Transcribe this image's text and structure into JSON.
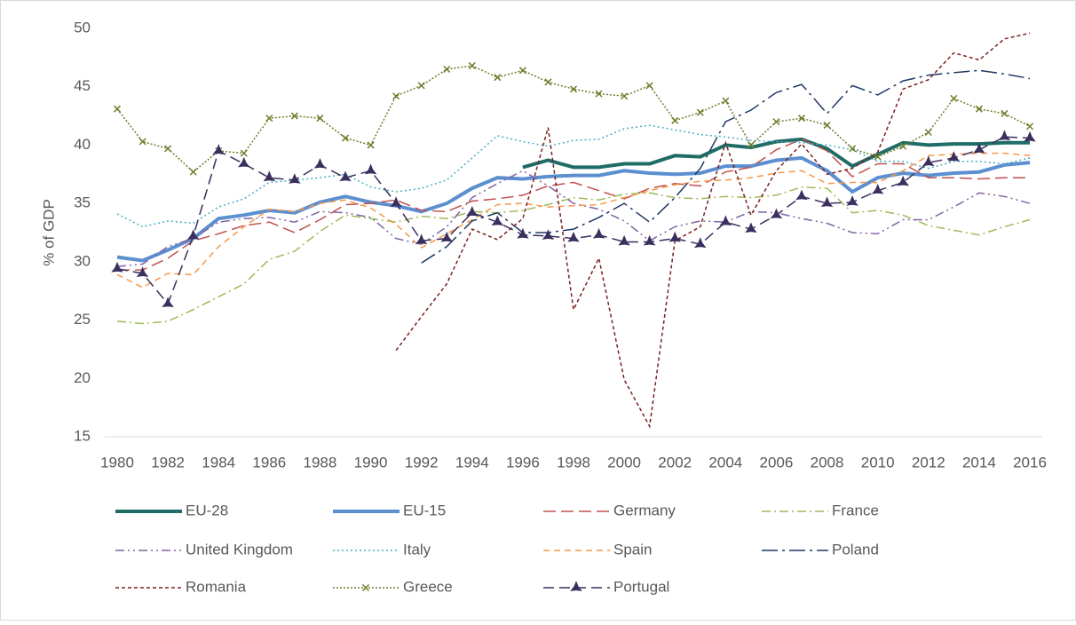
{
  "chart_data": {
    "type": "line",
    "y_label": "% of GDP",
    "x": [
      1980,
      1981,
      1982,
      1983,
      1984,
      1985,
      1986,
      1987,
      1988,
      1989,
      1990,
      1991,
      1992,
      1993,
      1994,
      1995,
      1996,
      1997,
      1998,
      1999,
      2000,
      2001,
      2002,
      2003,
      2004,
      2005,
      2006,
      2007,
      2008,
      2009,
      2010,
      2011,
      2012,
      2013,
      2014,
      2015,
      2016
    ],
    "xlim": [
      1980,
      2016
    ],
    "xticks": [
      1980,
      1982,
      1984,
      1986,
      1988,
      1990,
      1992,
      1994,
      1996,
      1998,
      2000,
      2002,
      2004,
      2006,
      2008,
      2010,
      2012,
      2014,
      2016
    ],
    "ylim": [
      15,
      50
    ],
    "yticks": [
      15,
      20,
      25,
      30,
      35,
      40,
      45,
      50
    ],
    "grid": false,
    "legend": "bottom",
    "series": [
      {
        "name": "EU-28",
        "color": "#1f6b66",
        "width": 4,
        "dash": "",
        "marker": "none",
        "values": [
          null,
          null,
          null,
          null,
          null,
          null,
          null,
          null,
          null,
          null,
          null,
          null,
          null,
          null,
          null,
          null,
          38.1,
          38.7,
          38.1,
          38.1,
          38.4,
          38.4,
          39.1,
          39.0,
          40.0,
          39.8,
          40.3,
          40.5,
          39.7,
          38.2,
          39.2,
          40.2,
          40.0,
          40.1,
          40.1,
          40.2,
          40.2
        ]
      },
      {
        "name": "EU-15",
        "color": "#5b8fd0",
        "width": 4,
        "dash": "",
        "marker": "none",
        "values": [
          30.4,
          30.1,
          31.0,
          32.0,
          33.7,
          34.0,
          34.4,
          34.2,
          35.1,
          35.6,
          35.1,
          34.8,
          34.3,
          35.0,
          36.3,
          37.2,
          37.1,
          37.3,
          37.4,
          37.4,
          37.8,
          37.6,
          37.5,
          37.6,
          38.2,
          38.2,
          38.7,
          38.9,
          37.8,
          36.0,
          37.2,
          37.6,
          37.4,
          37.6,
          37.7,
          38.3,
          38.5
        ]
      },
      {
        "name": "Germany",
        "color": "#c0504d",
        "width": 1.5,
        "dash": "14 6",
        "marker": "none",
        "values": [
          29.3,
          29.3,
          30.3,
          31.8,
          32.4,
          33.1,
          33.4,
          32.5,
          33.6,
          34.9,
          35.0,
          35.3,
          34.4,
          34.3,
          35.2,
          35.4,
          35.7,
          36.5,
          36.8,
          36.1,
          35.4,
          36.3,
          36.7,
          36.5,
          37.7,
          38.1,
          39.6,
          40.5,
          39.5,
          37.3,
          38.4,
          38.4,
          37.2,
          37.2,
          37.1,
          37.2,
          37.2
        ]
      },
      {
        "name": "France",
        "color": "#9bbb59",
        "width": 1.5,
        "dash": "10 4 2 4",
        "marker": "none",
        "values": [
          24.9,
          24.7,
          24.9,
          25.9,
          27.0,
          28.1,
          30.2,
          30.9,
          32.6,
          34.0,
          33.7,
          33.4,
          33.9,
          33.7,
          34.3,
          34.2,
          34.4,
          34.9,
          35.5,
          35.3,
          35.8,
          35.9,
          35.5,
          35.4,
          35.6,
          35.5,
          35.7,
          36.4,
          36.3,
          34.2,
          34.4,
          34.0,
          33.1,
          32.7,
          32.3,
          33.0,
          33.6
        ]
      },
      {
        "name": "United Kingdom",
        "color": "#8064a2",
        "width": 1.5,
        "dash": "10 4 2 4 2 4",
        "marker": "none",
        "values": [
          29.6,
          29.8,
          31.3,
          32.0,
          33.4,
          33.7,
          33.8,
          33.4,
          34.3,
          34.2,
          33.8,
          32.0,
          31.5,
          33.0,
          35.5,
          36.7,
          37.8,
          36.5,
          35.0,
          34.5,
          33.5,
          31.8,
          33.0,
          33.5,
          33.4,
          34.3,
          34.2,
          33.7,
          33.3,
          32.5,
          32.4,
          33.6,
          33.6,
          34.7,
          35.9,
          35.6,
          35.0
        ]
      },
      {
        "name": "Italy",
        "color": "#4bacc6",
        "width": 1.5,
        "dash": "2 3",
        "marker": "none",
        "values": [
          34.1,
          33.0,
          33.5,
          33.3,
          34.7,
          35.4,
          36.8,
          37.0,
          37.2,
          37.5,
          36.4,
          36.0,
          36.3,
          37.0,
          38.9,
          40.8,
          40.3,
          39.9,
          40.4,
          40.5,
          41.4,
          41.7,
          41.3,
          40.9,
          40.7,
          40.4,
          40.3,
          40.2,
          40.0,
          39.6,
          38.6,
          38.6,
          38.0,
          38.6,
          38.6,
          38.4,
          38.9
        ]
      },
      {
        "name": "Spain",
        "color": "#f79646",
        "width": 1.5,
        "dash": "7 5",
        "marker": "none",
        "values": [
          28.9,
          27.8,
          29.0,
          28.9,
          31.3,
          33.0,
          34.5,
          34.3,
          35.0,
          35.3,
          34.6,
          33.2,
          31.2,
          32.4,
          33.6,
          34.9,
          35.0,
          34.7,
          34.8,
          34.9,
          35.5,
          36.1,
          36.6,
          36.9,
          37.0,
          37.2,
          37.6,
          37.8,
          36.7,
          36.8,
          36.8,
          37.8,
          39.1,
          39.2,
          39.3,
          39.3,
          39.1
        ]
      },
      {
        "name": "Poland",
        "color": "#1f3864",
        "width": 1.5,
        "dash": "18 5 3 5",
        "marker": "none",
        "values": [
          null,
          null,
          null,
          null,
          null,
          null,
          null,
          null,
          null,
          null,
          null,
          null,
          29.9,
          31.3,
          33.5,
          34.2,
          32.5,
          32.5,
          32.8,
          33.8,
          35.0,
          33.4,
          35.5,
          38.0,
          42.0,
          43.0,
          44.5,
          45.2,
          42.7,
          45.1,
          44.3,
          45.5,
          46.0,
          46.2,
          46.4,
          46.1,
          45.7
        ]
      },
      {
        "name": "Romania",
        "color": "#7b2020",
        "width": 1.5,
        "dash": "4 3",
        "marker": "none",
        "values": [
          null,
          null,
          null,
          null,
          null,
          null,
          null,
          null,
          null,
          null,
          null,
          22.4,
          25.3,
          28.1,
          32.8,
          31.9,
          33.7,
          41.5,
          25.9,
          30.3,
          19.9,
          15.9,
          31.8,
          33.0,
          40.2,
          34.0,
          37.8,
          40.1,
          37.5,
          38.0,
          39.4,
          44.8,
          45.6,
          47.9,
          47.3,
          49.1,
          49.6
        ]
      },
      {
        "name": "Greece",
        "color": "#6b7d2a",
        "width": 1.5,
        "dash": "2 2",
        "marker": "cross",
        "values": [
          43.1,
          40.3,
          39.7,
          37.7,
          39.5,
          39.3,
          42.3,
          42.5,
          42.3,
          40.6,
          40.0,
          44.2,
          45.1,
          46.5,
          46.8,
          45.8,
          46.4,
          45.4,
          44.8,
          44.4,
          44.2,
          45.1,
          42.1,
          42.8,
          43.8,
          40.0,
          42.0,
          42.3,
          41.7,
          39.7,
          39.0,
          39.9,
          41.1,
          44.0,
          43.1,
          42.7,
          41.6
        ]
      },
      {
        "name": "Portugal",
        "color": "#3b2f5e",
        "width": 1.5,
        "dash": "12 6",
        "marker": "star",
        "values": [
          29.4,
          29.0,
          26.4,
          32.2,
          39.5,
          38.4,
          37.2,
          37.0,
          38.3,
          37.2,
          37.8,
          35.0,
          31.8,
          32.0,
          34.2,
          33.4,
          32.3,
          32.2,
          32.0,
          32.3,
          31.7,
          31.7,
          32.0,
          31.5,
          33.4,
          32.8,
          34.0,
          35.6,
          35.0,
          35.1,
          36.1,
          36.8,
          38.5,
          38.9,
          39.6,
          40.7,
          40.6
        ]
      }
    ]
  }
}
